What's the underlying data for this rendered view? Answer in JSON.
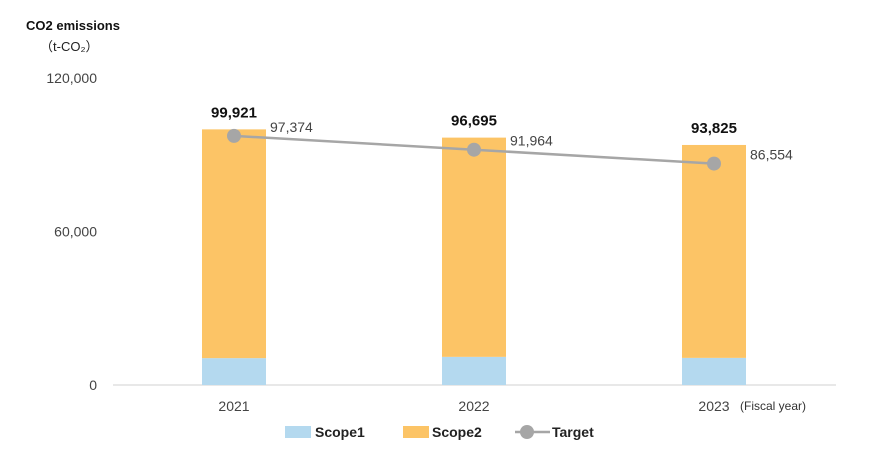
{
  "chart_data": {
    "type": "bar",
    "title": "CO2 emissions",
    "ylabel": "（t-CO₂）",
    "xlabel_note": "(Fiscal year)",
    "categories": [
      "2021",
      "2022",
      "2023"
    ],
    "ylim": [
      0,
      120000
    ],
    "yticks": [
      0,
      60000,
      120000
    ],
    "ytick_labels": [
      "0",
      "60,000",
      "120,000"
    ],
    "stacked": true,
    "series": [
      {
        "name": "Scope1",
        "values": [
          10500,
          11000,
          10600
        ],
        "color": "#b4d9ef"
      },
      {
        "name": "Scope2",
        "values": [
          89421,
          85695,
          83225
        ],
        "color": "#fcc466"
      }
    ],
    "totals": [
      99921,
      96695,
      93825
    ],
    "total_labels": [
      "99,921",
      "96,695",
      "93,825"
    ],
    "line_series": {
      "name": "Target",
      "values": [
        97374,
        91964,
        86554
      ],
      "labels": [
        "97,374",
        "91,964",
        "86,554"
      ],
      "color": "#a6a6a6"
    },
    "legend": {
      "position": "bottom",
      "items": [
        "Scope1",
        "Scope2",
        "Target"
      ]
    },
    "grid": false
  }
}
